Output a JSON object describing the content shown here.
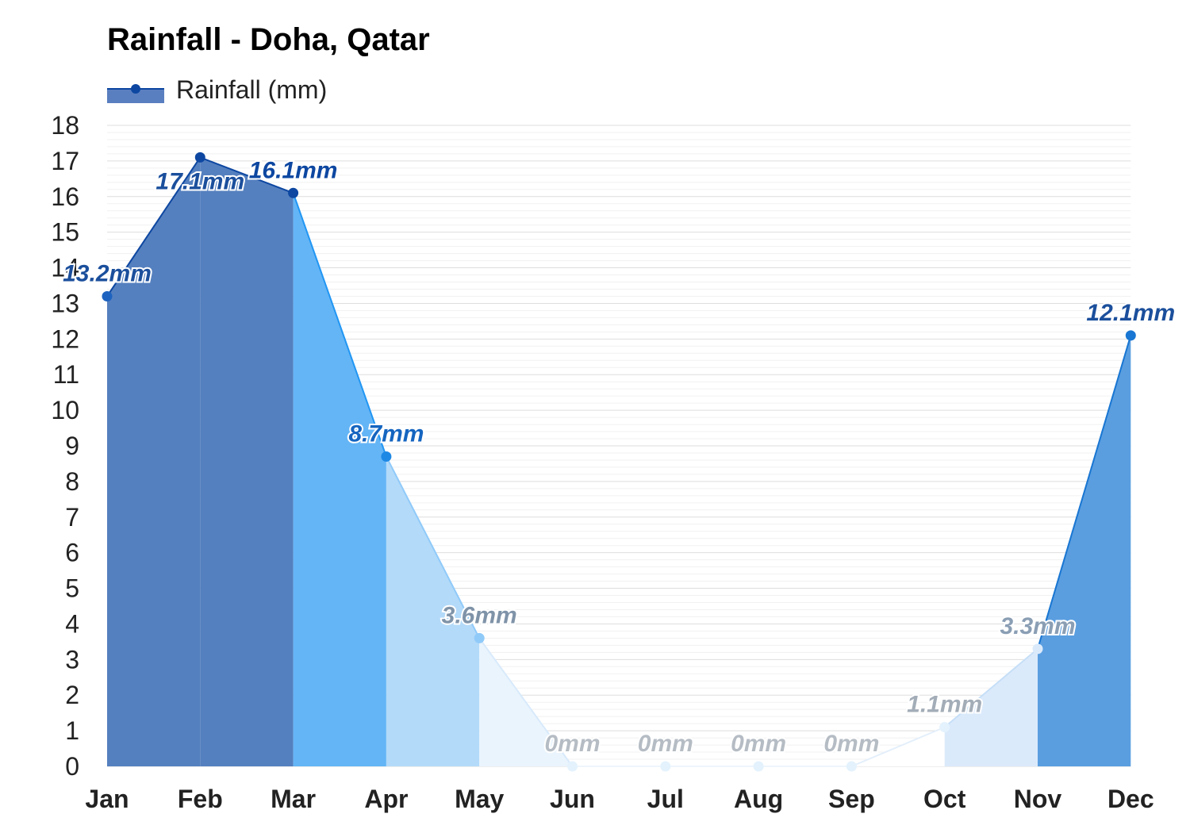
{
  "chart_data": {
    "type": "area",
    "title": "Rainfall - Doha, Qatar",
    "categories": [
      "Jan",
      "Feb",
      "Mar",
      "Apr",
      "May",
      "Jun",
      "Jul",
      "Aug",
      "Sep",
      "Oct",
      "Nov",
      "Dec"
    ],
    "series": [
      {
        "name": "Rainfall (mm)",
        "values": [
          13.2,
          17.1,
          16.1,
          8.7,
          3.6,
          0,
          0,
          0,
          0,
          1.1,
          3.3,
          12.1
        ]
      }
    ],
    "data_labels": [
      "13.2mm",
      "17.1mm",
      "16.1mm",
      "8.7mm",
      "3.6mm",
      "0mm",
      "0mm",
      "0mm",
      "0mm",
      "1.1mm",
      "3.3mm",
      "12.1mm"
    ],
    "y_ticks": [
      "0",
      "1",
      "2",
      "3",
      "4",
      "5",
      "6",
      "7",
      "8",
      "9",
      "10",
      "11",
      "12",
      "13",
      "14",
      "15",
      "16",
      "17",
      "18"
    ],
    "ylim": [
      0,
      18
    ],
    "xlabel": "",
    "ylabel": "",
    "grid": true,
    "legend_position": "top-left",
    "colors": {
      "legend_fill": "#5a7fc0",
      "legend_marker": "#0d47a1",
      "grid": "#e6e6e6",
      "segment_fills": [
        "#5580bf",
        "#5580bf",
        "#64b5f6",
        "#b3daf9",
        "#eaf4fd",
        "#ffffff",
        "#ffffff",
        "#ffffff",
        "#ffffff",
        "#dbeafb",
        "#5a9ee0"
      ],
      "segment_lines": [
        "#0d47a1",
        "#0d47a1",
        "#2196f3",
        "#90caf9",
        "#d8eafb",
        "#eef5fc",
        "#eef5fc",
        "#eef5fc",
        "#e3effb",
        "#c6dff7",
        "#1976d2"
      ],
      "point_colors": [
        "#1e63c0",
        "#0d47a1",
        "#0d47a1",
        "#1e88e5",
        "#90caf9",
        "#e3f2fd",
        "#e3f2fd",
        "#e3f2fd",
        "#e3f2fd",
        "#e3f2fd",
        "#dbeafb",
        "#1976d2"
      ],
      "label_colors": [
        "#1b4f9c",
        "#1b4f9c",
        "#0d47a1",
        "#1565c0",
        "#7f93a8",
        "#b5bcc4",
        "#b5bcc4",
        "#b5bcc4",
        "#b5bcc4",
        "#a3adb8",
        "#8a9eb4",
        "#1b4f9c"
      ]
    }
  }
}
